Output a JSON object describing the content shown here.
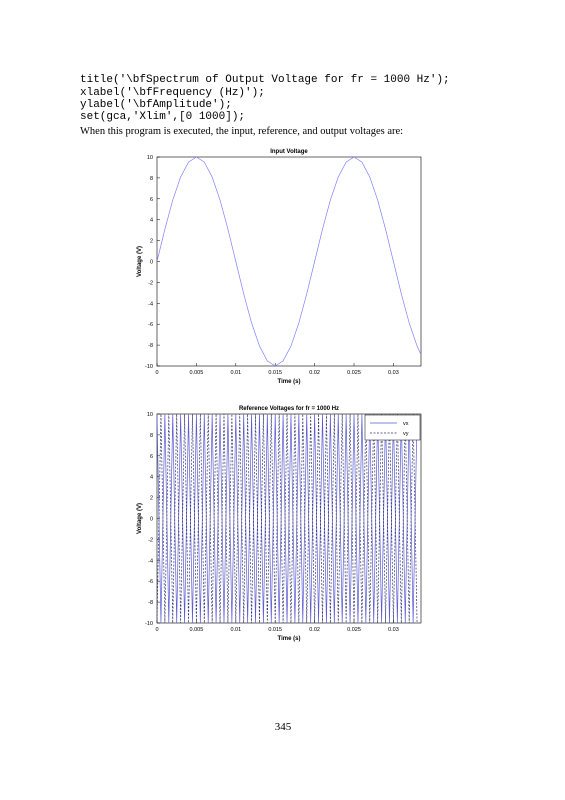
{
  "code": [
    "title('\\bfSpectrum of Output Voltage for fr = 1000 Hz');",
    "xlabel('\\bfFrequency (Hz)');",
    "ylabel('\\bfAmplitude');",
    "set(gca,'Xlim',[0 1000]);"
  ],
  "paragraph": "When this program is executed, the input, reference, and output voltages are:",
  "chart_data": [
    {
      "type": "line",
      "title": "Input Voltage",
      "x_label": "Time (s)",
      "y_label": "Voltage (V)",
      "x": [
        0,
        0.001,
        0.002,
        0.003,
        0.004,
        0.005,
        0.006,
        0.007,
        0.008,
        0.009,
        0.01,
        0.011,
        0.012,
        0.013,
        0.014,
        0.015,
        0.016,
        0.017,
        0.018,
        0.019,
        0.02,
        0.021,
        0.022,
        0.023,
        0.024,
        0.025,
        0.026,
        0.027,
        0.028,
        0.029,
        0.03,
        0.031,
        0.032,
        0.033,
        0.0335
      ],
      "values": [
        0,
        3.09,
        5.88,
        8.09,
        9.51,
        10,
        9.51,
        8.09,
        5.88,
        3.09,
        0,
        -3.09,
        -5.88,
        -8.09,
        -9.51,
        -10,
        -9.51,
        -8.09,
        -5.88,
        -3.09,
        0,
        3.09,
        5.88,
        8.09,
        9.51,
        10,
        9.51,
        8.09,
        5.88,
        3.09,
        0,
        -3.09,
        -5.88,
        -8.09,
        -8.91
      ],
      "color": "#7f7fff",
      "xlim": [
        0,
        0.0335
      ],
      "ylim": [
        -10,
        10
      ],
      "xticks": [
        0,
        0.005,
        0.01,
        0.015,
        0.02,
        0.025,
        0.03
      ],
      "yticks": [
        -10,
        -8,
        -6,
        -4,
        -2,
        0,
        2,
        4,
        6,
        8,
        10
      ]
    },
    {
      "type": "line",
      "title": "Reference Voltages for fr = 1000 Hz",
      "x_label": "Time (s)",
      "y_label": "Voltage (V)",
      "x": [
        0,
        0.0005,
        0.001,
        0.0015,
        0.002,
        0.0025,
        0.003,
        0.0035,
        0.004,
        0.0045,
        0.005,
        0.0055,
        0.006,
        0.0065,
        0.007,
        0.0075,
        0.008,
        0.0085,
        0.009,
        0.0095,
        0.01,
        0.0105,
        0.011,
        0.0115,
        0.012,
        0.0125,
        0.013,
        0.0135,
        0.014,
        0.0145,
        0.015,
        0.0155,
        0.016,
        0.0165,
        0.017,
        0.0175,
        0.018,
        0.0185,
        0.019,
        0.0195,
        0.02,
        0.0205,
        0.021,
        0.0215,
        0.022,
        0.0225,
        0.023,
        0.0235,
        0.024,
        0.0245,
        0.025,
        0.0255,
        0.026,
        0.0265,
        0.027,
        0.0275,
        0.028,
        0.0285,
        0.029,
        0.0295,
        0.03,
        0.0305,
        0.031,
        0.0315,
        0.032,
        0.0325,
        0.033
      ],
      "series": [
        {
          "name": "vx",
          "color": "#5a5ad8",
          "linestyle": "solid",
          "values": [
            10,
            -10,
            10,
            -10,
            10,
            -10,
            10,
            -10,
            10,
            -10,
            10,
            -10,
            10,
            -10,
            10,
            -10,
            10,
            -10,
            10,
            -10,
            10,
            -10,
            10,
            -10,
            10,
            -10,
            10,
            -10,
            10,
            -10,
            10,
            -10,
            10,
            -10,
            10,
            -10,
            10,
            -10,
            10,
            -10,
            10,
            -10,
            10,
            -10,
            10,
            -10,
            10,
            -10,
            10,
            -10,
            10,
            -10,
            10,
            -10,
            10,
            -10,
            10,
            -10,
            10,
            -10,
            10,
            -10,
            10,
            -10,
            10,
            -10,
            10
          ]
        },
        {
          "name": "vy",
          "color": "#333366",
          "linestyle": "dashed",
          "values": [
            -10,
            10,
            -10,
            10,
            -10,
            10,
            -10,
            10,
            -10,
            10,
            -10,
            10,
            -10,
            10,
            -10,
            10,
            -10,
            10,
            -10,
            10,
            -10,
            10,
            -10,
            10,
            -10,
            10,
            -10,
            10,
            -10,
            10,
            -10,
            10,
            -10,
            10,
            -10,
            10,
            -10,
            10,
            -10,
            10,
            -10,
            10,
            -10,
            10,
            -10,
            10,
            -10,
            10,
            -10,
            10,
            -10,
            10,
            -10,
            10,
            -10,
            10,
            -10,
            10,
            -10,
            10,
            -10,
            10,
            -10,
            10,
            -10,
            10,
            -10
          ]
        }
      ],
      "legend": "upper right",
      "xlim": [
        0,
        0.0335
      ],
      "ylim": [
        -10,
        10
      ],
      "xticks": [
        0,
        0.005,
        0.01,
        0.015,
        0.02,
        0.025,
        0.03
      ],
      "yticks": [
        -10,
        -8,
        -6,
        -4,
        -2,
        0,
        2,
        4,
        6,
        8,
        10
      ]
    }
  ],
  "page_number": "345"
}
